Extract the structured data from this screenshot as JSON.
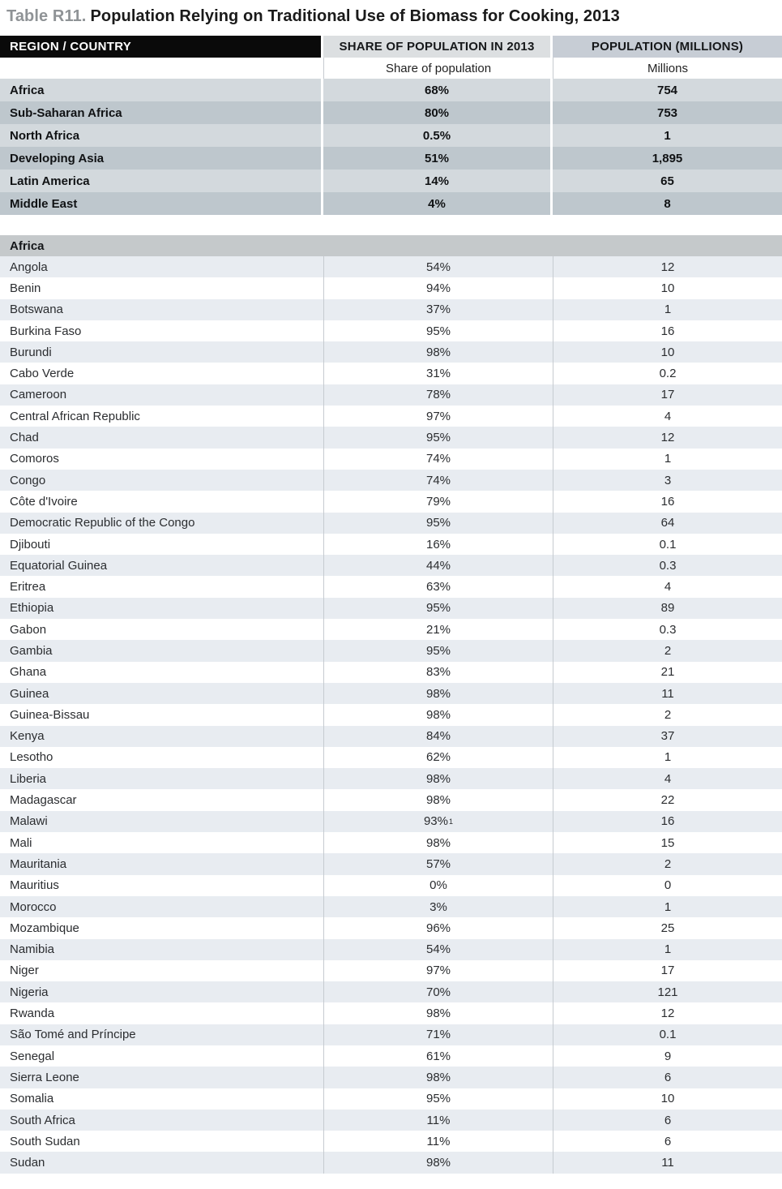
{
  "title": {
    "label": "Table R11.",
    "text": "Population Relying on Traditional Use of Biomass for Cooking, 2013"
  },
  "table": {
    "columns": {
      "region": "REGION / COUNTRY",
      "share": "SHARE OF POPULATION IN 2013",
      "population": "POPULATION (MILLIONS)"
    },
    "subheaders": {
      "share": "Share of population",
      "population": "Millions"
    },
    "summary_rows": [
      {
        "region": "Africa",
        "share": "68%",
        "population": "754"
      },
      {
        "region": "Sub-Saharan Africa",
        "share": "80%",
        "population": "753"
      },
      {
        "region": "North Africa",
        "share": "0.5%",
        "population": "1"
      },
      {
        "region": "Developing Asia",
        "share": "51%",
        "population": "1,895"
      },
      {
        "region": "Latin America",
        "share": "14%",
        "population": "65"
      },
      {
        "region": "Middle East",
        "share": "4%",
        "population": "8"
      }
    ],
    "section_label": "Africa",
    "country_rows": [
      {
        "country": "Angola",
        "share": "54%",
        "population": "12"
      },
      {
        "country": "Benin",
        "share": "94%",
        "population": "10"
      },
      {
        "country": "Botswana",
        "share": "37%",
        "population": "1"
      },
      {
        "country": "Burkina Faso",
        "share": "95%",
        "population": "16"
      },
      {
        "country": "Burundi",
        "share": "98%",
        "population": "10"
      },
      {
        "country": "Cabo Verde",
        "share": "31%",
        "population": "0.2"
      },
      {
        "country": "Cameroon",
        "share": "78%",
        "population": "17"
      },
      {
        "country": "Central African Republic",
        "share": "97%",
        "population": "4"
      },
      {
        "country": "Chad",
        "share": "95%",
        "population": "12"
      },
      {
        "country": "Comoros",
        "share": "74%",
        "population": "1"
      },
      {
        "country": "Congo",
        "share": "74%",
        "population": "3"
      },
      {
        "country": "Côte d'Ivoire",
        "share": "79%",
        "population": "16"
      },
      {
        "country": "Democratic Republic of the Congo",
        "share": "95%",
        "population": "64"
      },
      {
        "country": "Djibouti",
        "share": "16%",
        "population": "0.1"
      },
      {
        "country": "Equatorial Guinea",
        "share": "44%",
        "population": "0.3"
      },
      {
        "country": "Eritrea",
        "share": "63%",
        "population": "4"
      },
      {
        "country": "Ethiopia",
        "share": "95%",
        "population": "89"
      },
      {
        "country": "Gabon",
        "share": "21%",
        "population": "0.3"
      },
      {
        "country": "Gambia",
        "share": "95%",
        "population": "2"
      },
      {
        "country": "Ghana",
        "share": "83%",
        "population": "21"
      },
      {
        "country": "Guinea",
        "share": "98%",
        "population": "11"
      },
      {
        "country": "Guinea-Bissau",
        "share": "98%",
        "population": "2"
      },
      {
        "country": "Kenya",
        "share": "84%",
        "population": "37"
      },
      {
        "country": "Lesotho",
        "share": "62%",
        "population": "1"
      },
      {
        "country": "Liberia",
        "share": "98%",
        "population": "4"
      },
      {
        "country": "Madagascar",
        "share": "98%",
        "population": "22"
      },
      {
        "country": "Malawi",
        "share": "93%",
        "share_sup": "1",
        "population": "16"
      },
      {
        "country": "Mali",
        "share": "98%",
        "population": "15"
      },
      {
        "country": "Mauritania",
        "share": "57%",
        "population": "2"
      },
      {
        "country": "Mauritius",
        "share": "0%",
        "population": "0"
      },
      {
        "country": "Morocco",
        "share": "3%",
        "population": "1"
      },
      {
        "country": "Mozambique",
        "share": "96%",
        "population": "25"
      },
      {
        "country": "Namibia",
        "share": "54%",
        "population": "1"
      },
      {
        "country": "Niger",
        "share": "97%",
        "population": "17"
      },
      {
        "country": "Nigeria",
        "share": "70%",
        "population": "121"
      },
      {
        "country": "Rwanda",
        "share": "98%",
        "population": "12"
      },
      {
        "country": "São Tomé and Príncipe",
        "share": "71%",
        "population": "0.1"
      },
      {
        "country": "Senegal",
        "share": "61%",
        "population": "9"
      },
      {
        "country": "Sierra Leone",
        "share": "98%",
        "population": "6"
      },
      {
        "country": "Somalia",
        "share": "95%",
        "population": "10"
      },
      {
        "country": "South Africa",
        "share": "11%",
        "population": "6"
      },
      {
        "country": "South Sudan",
        "share": "11%",
        "population": "6"
      },
      {
        "country": "Sudan",
        "share": "98%",
        "population": "11"
      }
    ]
  },
  "colors": {
    "header_region_bg": "#0a0a0a",
    "header_share_bg": "#dcdfe1",
    "header_population_bg": "#c7cdd5",
    "summary_light": "#d3d9dd",
    "summary_dark": "#bec7cd",
    "section_band": "#c5c9cb",
    "country_light": "#e8ecf1",
    "title_label": "#8f9396"
  }
}
